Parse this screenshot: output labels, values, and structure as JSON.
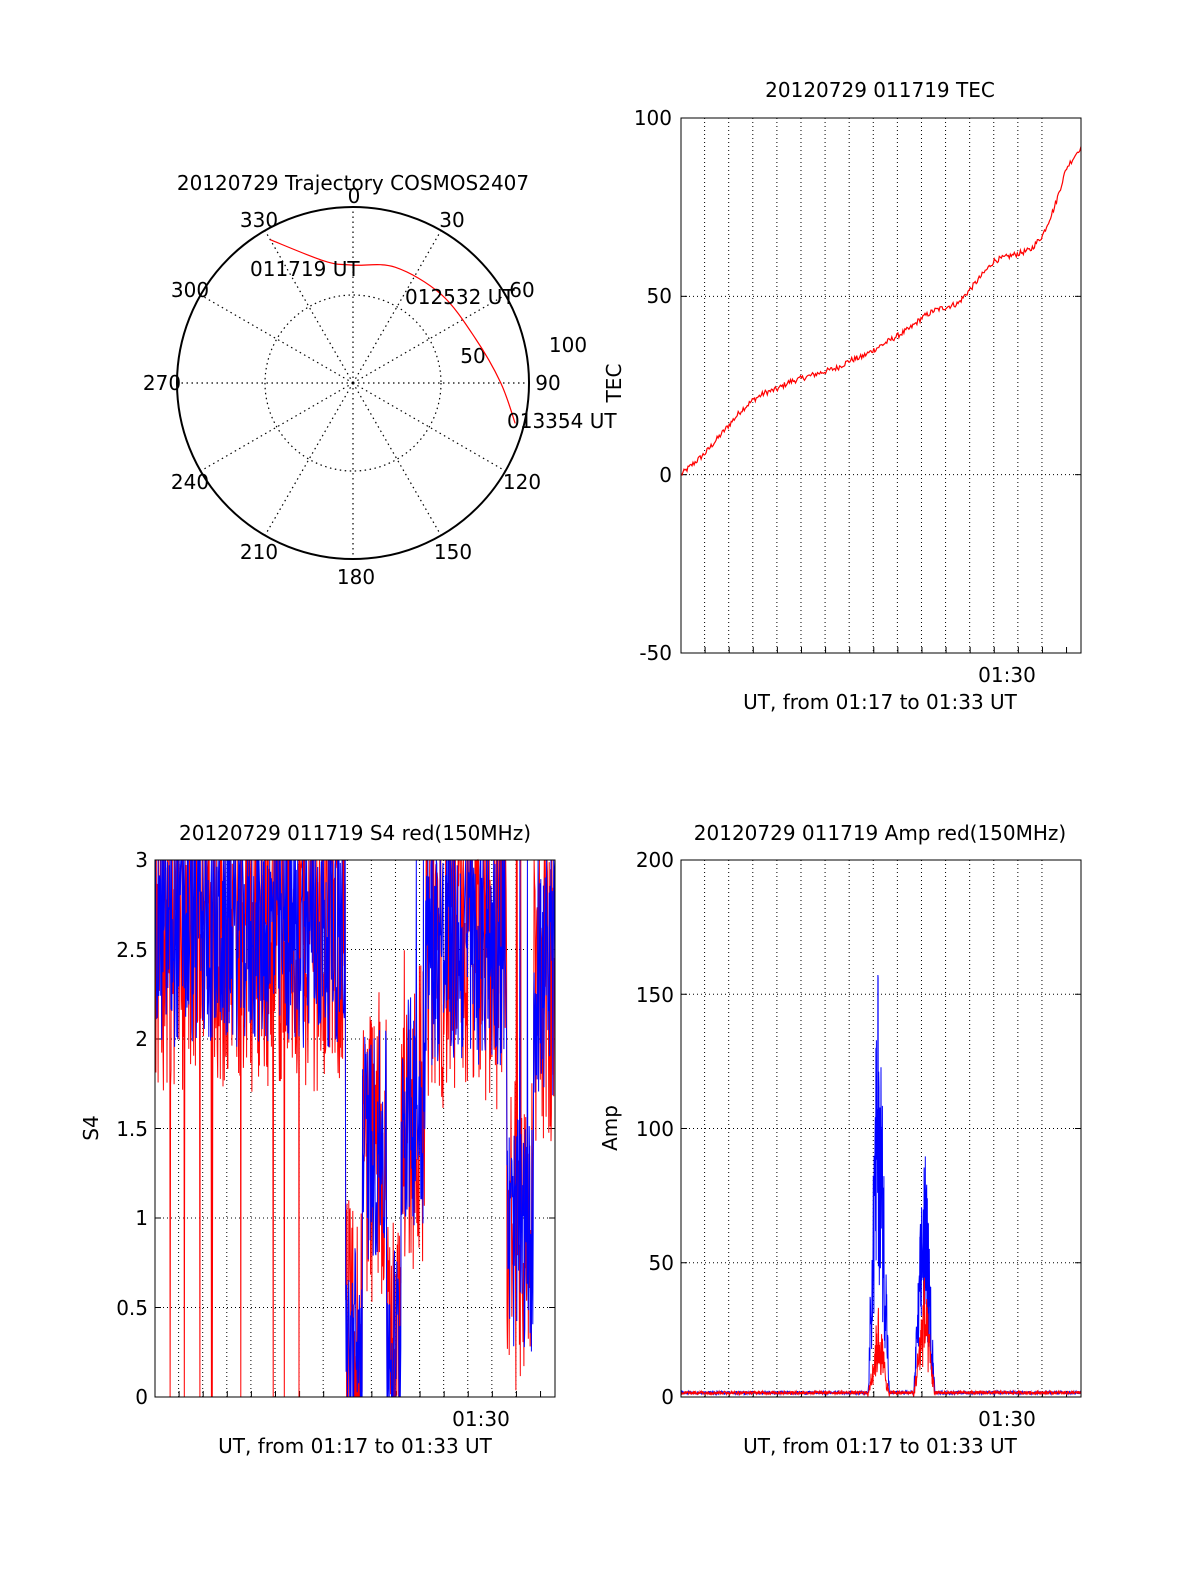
{
  "colors": {
    "red": "#ff0000",
    "blue": "#0000ff",
    "axis": "#000000"
  },
  "chart_data": [
    {
      "id": "trajectory",
      "type": "polar",
      "title": "20120729 Trajectory COSMOS2407",
      "azimuth_labels": [
        "0",
        "30",
        "60",
        "90",
        "120",
        "150",
        "180",
        "210",
        "240",
        "270",
        "300",
        "330"
      ],
      "radial_tick_labels": [
        "50",
        "100"
      ],
      "rlim": [
        0,
        100
      ],
      "track": {
        "color": "red",
        "points": [
          {
            "az": 330,
            "r": 94
          },
          {
            "az": 347,
            "r": 71
          },
          {
            "az": 0,
            "r": 67
          },
          {
            "az": 20,
            "r": 70
          },
          {
            "az": 45,
            "r": 71
          },
          {
            "az": 70,
            "r": 74
          },
          {
            "az": 90,
            "r": 84
          },
          {
            "az": 104,
            "r": 95
          }
        ]
      },
      "annotations": [
        "011719 UT",
        "012532 UT",
        "013354 UT"
      ]
    },
    {
      "id": "tec",
      "type": "line",
      "title": "20120729 011719 TEC",
      "ylabel": "TEC",
      "xlabel": "UT, from 01:17 to 01:33 UT",
      "ylim": [
        -50,
        100
      ],
      "xlim": [
        0,
        16.6
      ],
      "y_ticks": [
        "100",
        "50",
        "0",
        "-50"
      ],
      "x_tick_labels": [
        {
          "x": 13.0,
          "label": "01:30"
        }
      ],
      "grid": true,
      "series": [
        {
          "color": "red",
          "x": [
            0,
            0.5,
            1,
            1.5,
            2,
            2.5,
            3,
            3.5,
            4,
            4.5,
            5,
            5.5,
            6,
            6.5,
            7,
            7.5,
            8,
            8.5,
            9,
            9.5,
            10,
            10.5,
            11,
            11.5,
            12,
            12.5,
            13,
            13.5,
            14,
            14.5,
            15,
            15.5,
            16,
            16.6
          ],
          "y": [
            0,
            3,
            6,
            10,
            14,
            18,
            21,
            23,
            24,
            26,
            27,
            28,
            29,
            30,
            32,
            33,
            35,
            37,
            39,
            41,
            44,
            46,
            47,
            48,
            52,
            56,
            60,
            61,
            62,
            63,
            67,
            75,
            86,
            92
          ]
        }
      ]
    },
    {
      "id": "s4",
      "type": "line",
      "title": "20120729 011719 S4 red(150MHz)",
      "ylabel": "S4",
      "xlabel": "UT, from 01:17 to 01:33 UT",
      "ylim": [
        0,
        3
      ],
      "xlim": [
        0,
        16.6
      ],
      "y_ticks": [
        "3",
        "2.5",
        "2",
        "1.5",
        "1",
        "0.5",
        "0"
      ],
      "x_tick_labels": [
        {
          "x": 13.0,
          "label": "01:30"
        }
      ],
      "grid": true,
      "series": [
        {
          "color": "red",
          "description_hidden": true
        },
        {
          "color": "blue",
          "description_hidden": true
        }
      ]
    },
    {
      "id": "amp",
      "type": "line",
      "title": "20120729 011719 Amp red(150MHz)",
      "ylabel": "Amp",
      "xlabel": "UT, from 01:17 to 01:33 UT",
      "ylim": [
        0,
        200
      ],
      "xlim": [
        0,
        16.6
      ],
      "y_ticks": [
        "200",
        "150",
        "100",
        "50",
        "0"
      ],
      "x_tick_labels": [
        {
          "x": 13.0,
          "label": "01:30"
        }
      ],
      "grid": true,
      "series": [
        {
          "color": "blue",
          "peaks": [
            {
              "x": 8.2,
              "y": 175
            },
            {
              "x": 10.1,
              "y": 104
            }
          ]
        },
        {
          "color": "red",
          "peaks": [
            {
              "x": 8.2,
              "y": 35
            },
            {
              "x": 10.1,
              "y": 47
            }
          ]
        }
      ]
    }
  ]
}
